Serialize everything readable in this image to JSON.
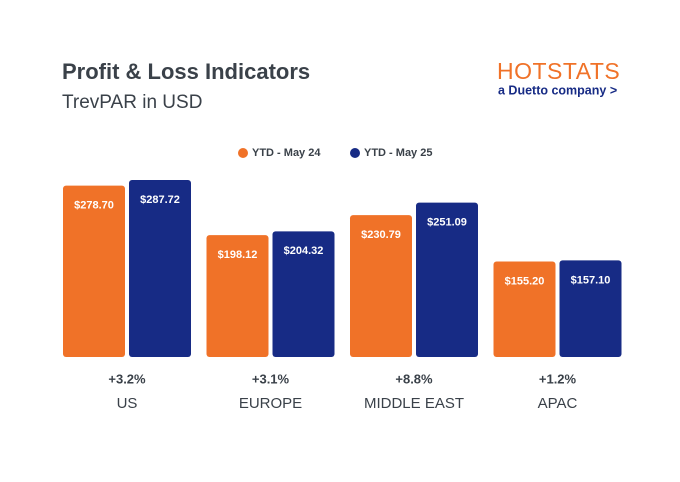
{
  "chart_data": {
    "type": "bar",
    "title": "Profit & Loss Indicators",
    "subtitle": "TrevPAR in USD",
    "logo": {
      "name": "HOTSTATS",
      "tagline": "a Duetto company >"
    },
    "categories": [
      "US",
      "EUROPE",
      "MIDDLE EAST",
      "APAC"
    ],
    "annotations": [
      "+3.2%",
      "+3.1%",
      "+8.8%",
      "+1.2%"
    ],
    "series": [
      {
        "name": "YTD - May 24",
        "color": "#f07228",
        "values": [
          278.7,
          198.12,
          230.79,
          155.2
        ],
        "value_labels": [
          "$278.70",
          "$198.12",
          "$230.79",
          "$155.20"
        ]
      },
      {
        "name": "YTD - May 25",
        "color": "#172b85",
        "values": [
          287.72,
          204.32,
          251.09,
          157.1
        ],
        "value_labels": [
          "$287.72",
          "$204.32",
          "$251.09",
          "$157.10"
        ]
      }
    ]
  }
}
